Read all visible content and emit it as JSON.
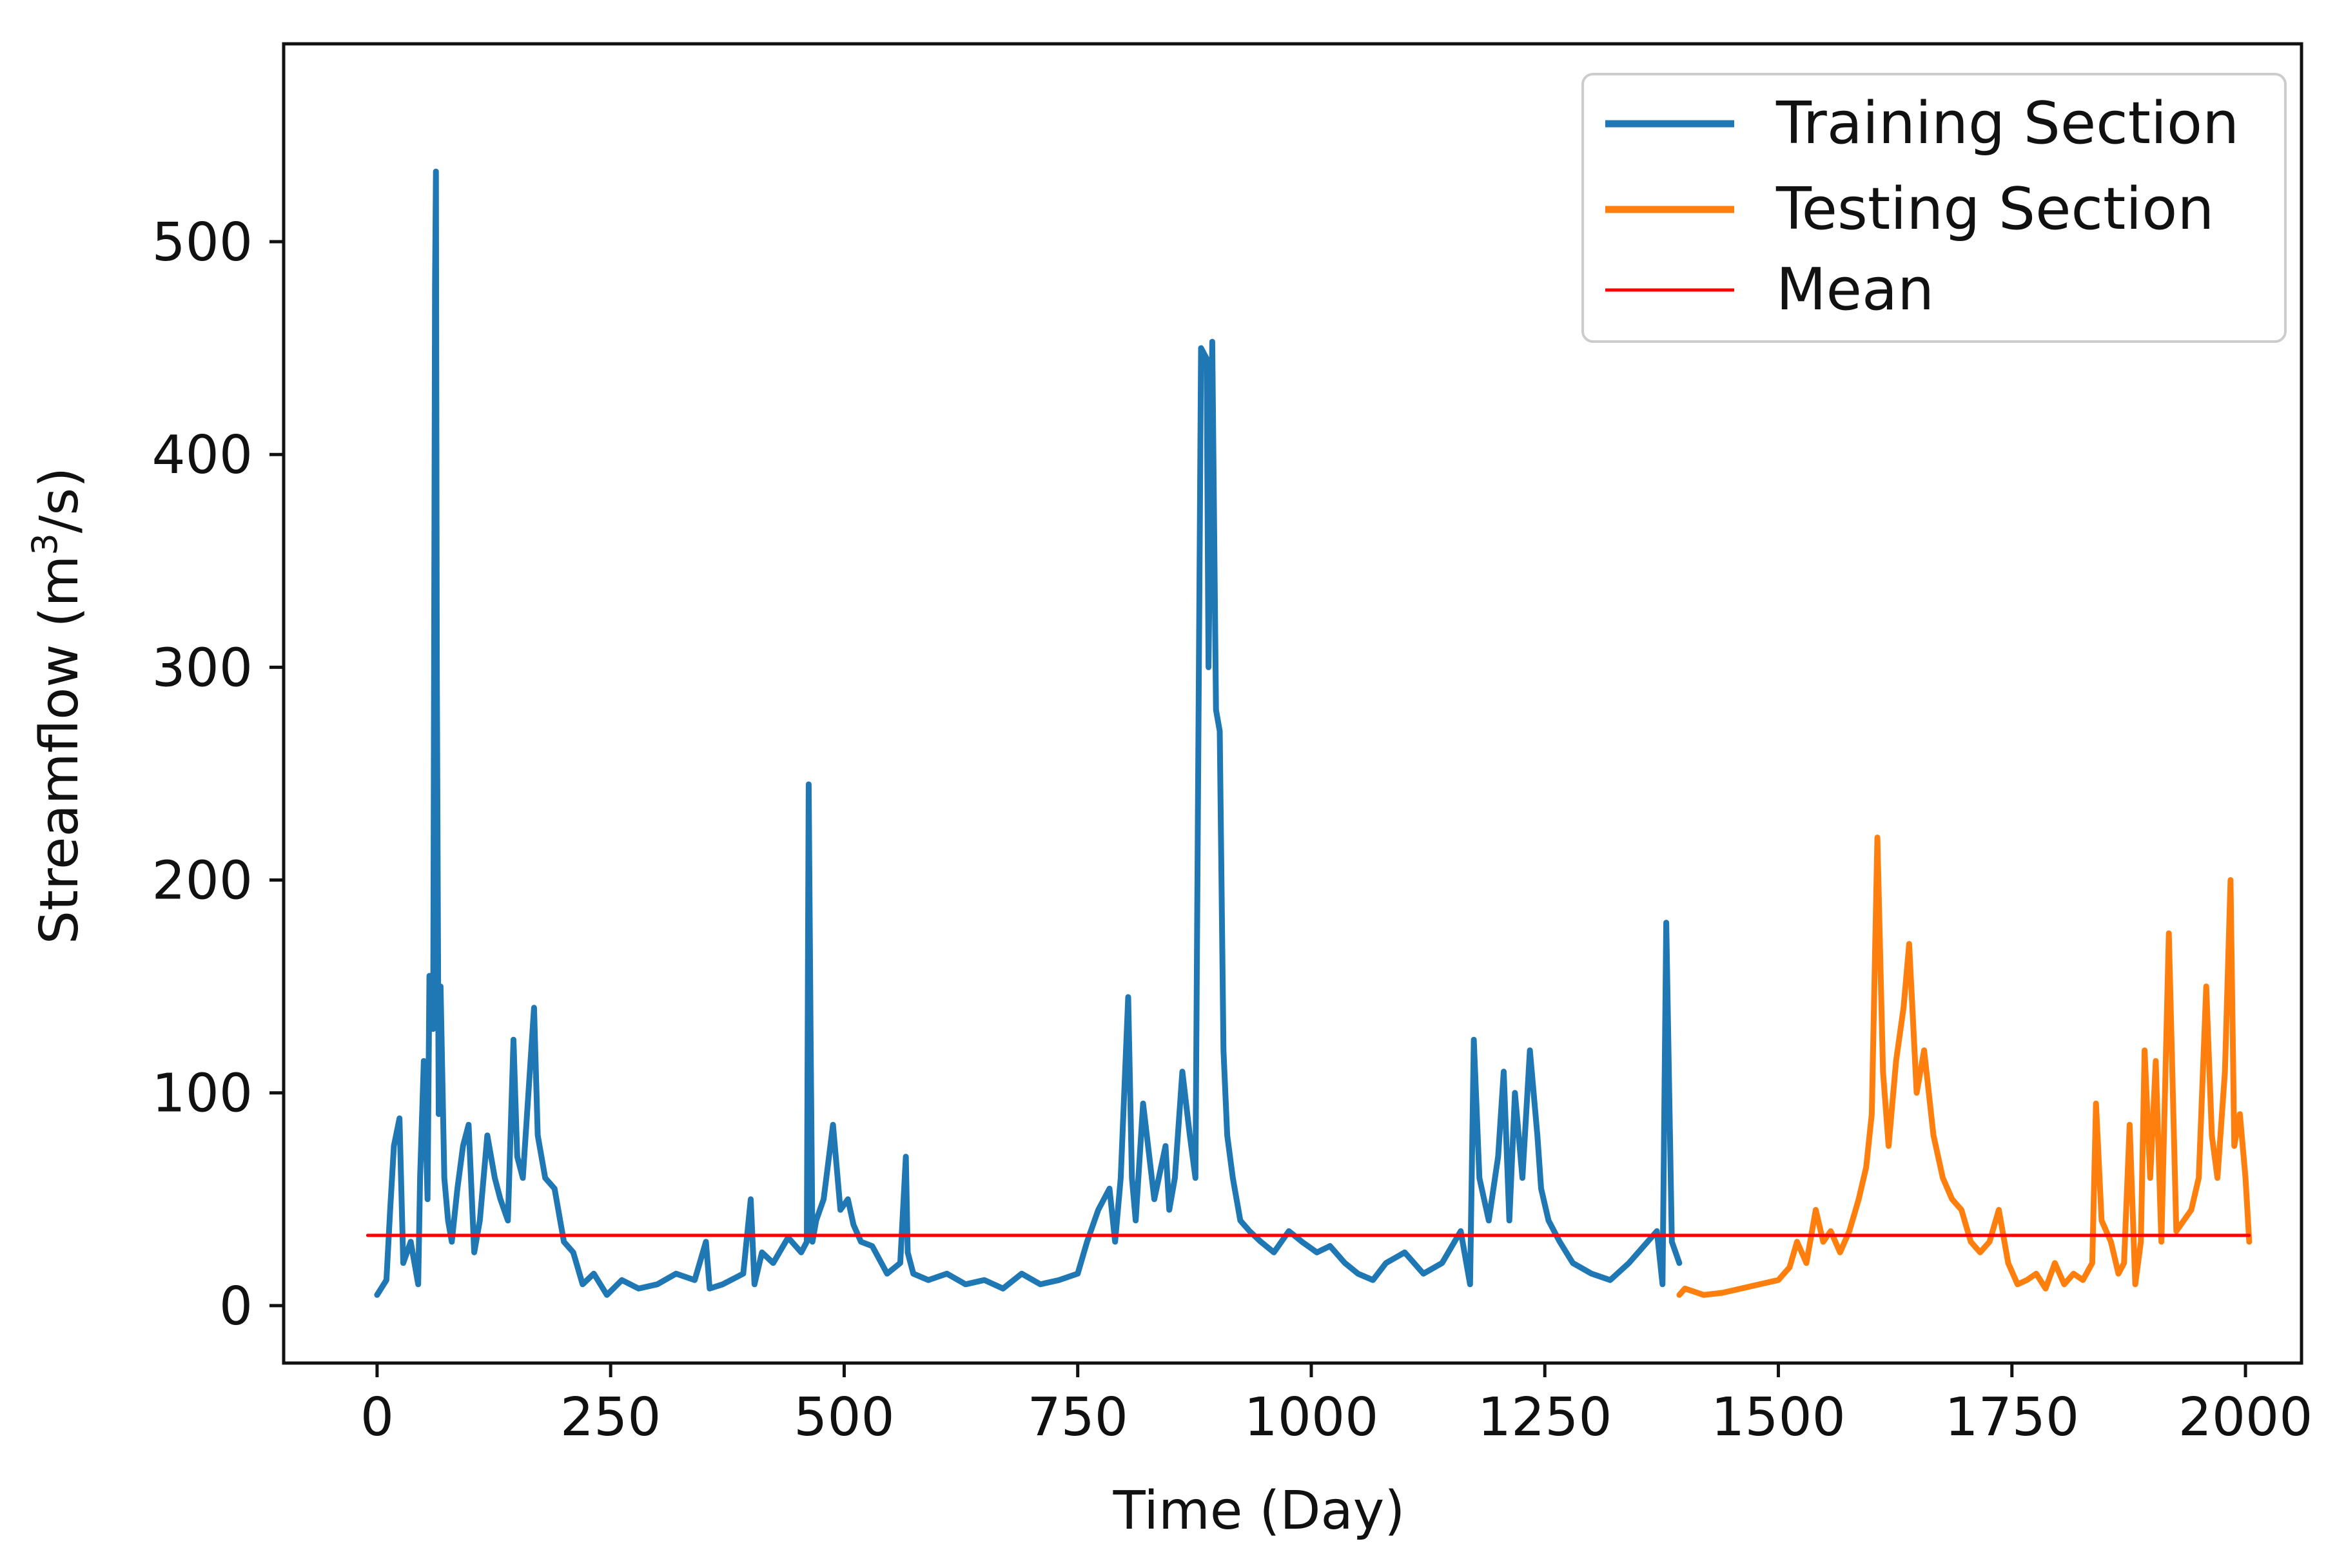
{
  "chart_data": {
    "type": "line",
    "xlabel": "Time (Day)",
    "ylabel": "Streamflow  (m",
    "ylabel_sup": "3",
    "ylabel_tail": "/s)",
    "xlim": [
      -100,
      2060
    ],
    "ylim": [
      -27,
      593
    ],
    "x_ticks": [
      0,
      250,
      500,
      750,
      1000,
      1250,
      1500,
      1750,
      2000
    ],
    "x_tick_labels": [
      "0",
      "250",
      "500",
      "750",
      "1000",
      "1250",
      "1500",
      "1750",
      "2000"
    ],
    "y_ticks": [
      0,
      100,
      200,
      300,
      400,
      500
    ],
    "y_tick_labels": [
      "0",
      "100",
      "200",
      "300",
      "400",
      "500"
    ],
    "grid": false,
    "legend_position": "top-right",
    "series": [
      {
        "name": "Training Section",
        "color": "#1f77b4",
        "x": [
          0,
          10,
          14,
          18,
          24,
          28,
          36,
          44,
          46,
          50,
          54,
          56,
          60,
          62,
          63,
          64,
          66,
          68,
          72,
          76,
          80,
          86,
          92,
          98,
          104,
          110,
          118,
          126,
          132,
          140,
          146,
          150,
          156,
          162,
          168,
          172,
          180,
          190,
          200,
          210,
          220,
          232,
          246,
          262,
          280,
          300,
          320,
          340,
          352,
          356,
          370,
          392,
          400,
          404,
          412,
          424,
          440,
          454,
          460,
          462,
          464,
          466,
          470,
          478,
          488,
          496,
          504,
          510,
          518,
          530,
          546,
          560,
          566,
          568,
          574,
          590,
          610,
          630,
          650,
          670,
          690,
          710,
          730,
          750,
          760,
          772,
          784,
          790,
          796,
          804,
          808,
          812,
          820,
          832,
          844,
          848,
          854,
          862,
          870,
          876,
          882,
          888,
          890,
          894,
          898,
          902,
          906,
          910,
          916,
          924,
          934,
          946,
          960,
          976,
          990,
          1006,
          1020,
          1036,
          1050,
          1066,
          1080,
          1100,
          1120,
          1140,
          1160,
          1170,
          1174,
          1180,
          1190,
          1200,
          1206,
          1212,
          1218,
          1226,
          1234,
          1242,
          1246,
          1254,
          1266,
          1280,
          1300,
          1320,
          1340,
          1360,
          1370,
          1376,
          1380,
          1386,
          1394
        ],
        "y": [
          5,
          12,
          45,
          75,
          88,
          20,
          30,
          10,
          60,
          115,
          50,
          155,
          130,
          480,
          533,
          300,
          90,
          150,
          60,
          40,
          30,
          55,
          75,
          85,
          25,
          40,
          80,
          60,
          50,
          40,
          125,
          70,
          60,
          100,
          140,
          80,
          60,
          55,
          30,
          25,
          10,
          15,
          5,
          12,
          8,
          10,
          15,
          12,
          30,
          8,
          10,
          15,
          50,
          10,
          25,
          20,
          32,
          25,
          30,
          245,
          130,
          30,
          40,
          50,
          85,
          45,
          50,
          38,
          30,
          28,
          15,
          20,
          70,
          25,
          15,
          12,
          15,
          10,
          12,
          8,
          15,
          10,
          12,
          15,
          30,
          45,
          55,
          30,
          60,
          145,
          60,
          40,
          95,
          50,
          75,
          45,
          60,
          110,
          80,
          60,
          450,
          445,
          300,
          453,
          280,
          270,
          120,
          80,
          60,
          40,
          35,
          30,
          25,
          35,
          30,
          25,
          28,
          20,
          15,
          12,
          20,
          25,
          15,
          20,
          35,
          10,
          125,
          60,
          40,
          70,
          110,
          40,
          100,
          60,
          120,
          80,
          55,
          40,
          30,
          20,
          15,
          12,
          20,
          30,
          35,
          10,
          180,
          30,
          20
        ]
      },
      {
        "name": "Testing Section",
        "color": "#ff7f0e",
        "x": [
          1394,
          1400,
          1420,
          1440,
          1460,
          1480,
          1500,
          1512,
          1520,
          1530,
          1540,
          1548,
          1556,
          1566,
          1576,
          1586,
          1594,
          1600,
          1606,
          1612,
          1618,
          1626,
          1634,
          1640,
          1648,
          1656,
          1666,
          1676,
          1686,
          1696,
          1706,
          1716,
          1726,
          1736,
          1746,
          1756,
          1766,
          1776,
          1786,
          1796,
          1806,
          1816,
          1826,
          1836,
          1840,
          1846,
          1856,
          1864,
          1870,
          1876,
          1882,
          1888,
          1892,
          1898,
          1904,
          1910,
          1918,
          1926,
          1934,
          1942,
          1950,
          1958,
          1964,
          1970,
          1978,
          1984,
          1988,
          1994,
          2000,
          2004
        ],
        "y": [
          5,
          8,
          5,
          6,
          8,
          10,
          12,
          18,
          30,
          20,
          45,
          30,
          35,
          25,
          35,
          50,
          65,
          90,
          220,
          110,
          75,
          115,
          140,
          170,
          100,
          120,
          80,
          60,
          50,
          45,
          30,
          25,
          30,
          45,
          20,
          10,
          12,
          15,
          8,
          20,
          10,
          15,
          12,
          20,
          95,
          40,
          30,
          15,
          20,
          85,
          10,
          30,
          120,
          60,
          115,
          30,
          175,
          35,
          40,
          45,
          60,
          150,
          80,
          60,
          110,
          200,
          75,
          90,
          60,
          30
        ]
      },
      {
        "name": "Mean",
        "color": "#ff0000",
        "x": [
          -10,
          2004
        ],
        "y": [
          33,
          33
        ]
      }
    ]
  }
}
